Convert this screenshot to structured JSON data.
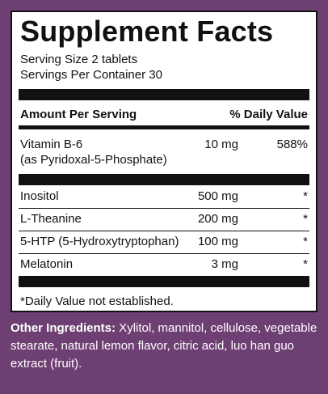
{
  "title": "Supplement Facts",
  "serving_size": "Serving Size 2 tablets",
  "servings_per_container": "Servings Per Container 30",
  "header": {
    "amount_label": "Amount Per Serving",
    "dv_label": "% Daily Value"
  },
  "vitamin": {
    "name": "Vitamin B-6",
    "sub": "(as Pyridoxal-5-Phosphate)",
    "amount": "10 mg",
    "dv": "588%"
  },
  "others": [
    {
      "name": "Inositol",
      "amount": "500 mg",
      "dv": "*"
    },
    {
      "name": "L-Theanine",
      "amount": "200 mg",
      "dv": "*"
    },
    {
      "name": "5-HTP (5-Hydroxytryptophan)",
      "amount": "100 mg",
      "dv": "*"
    },
    {
      "name": "Melatonin",
      "amount": "3 mg",
      "dv": "*"
    }
  ],
  "footnote": "*Daily Value not established.",
  "other_ingredients": {
    "label": "Other Ingredients:",
    "text": " Xylitol, mannitol, cellulose, vegetable stearate, natural lemon flavor, citric acid, luo han guo extract (fruit)."
  },
  "colors": {
    "background": "#6e3f73",
    "panel": "#ffffff",
    "ink": "#111111"
  }
}
